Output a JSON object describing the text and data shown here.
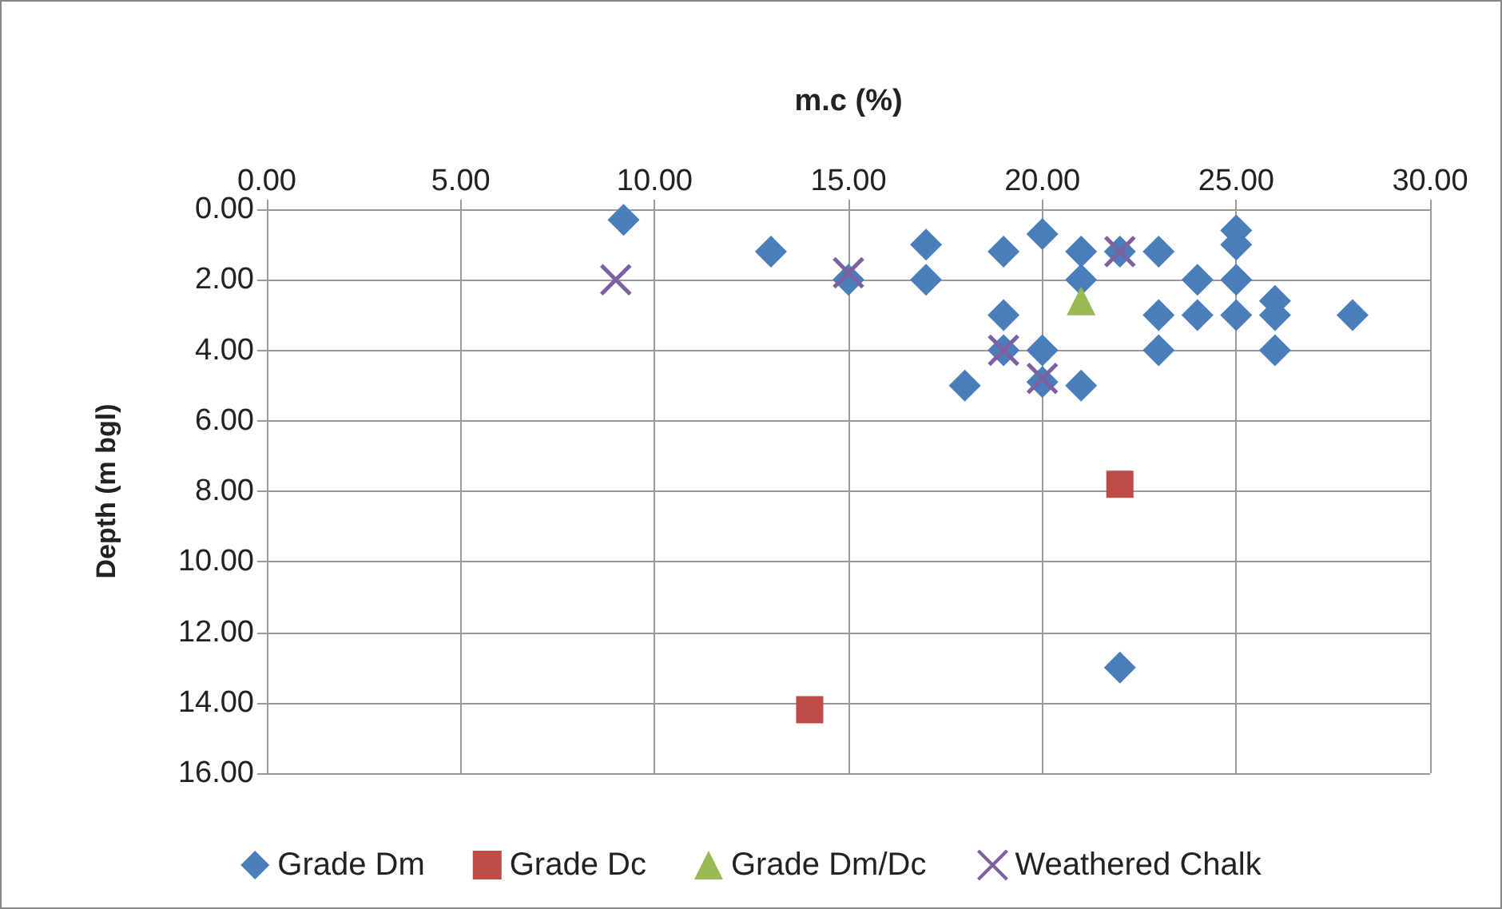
{
  "chart_data": {
    "type": "scatter",
    "xlabel": "m.c (%)",
    "ylabel": "Depth (m bgl)",
    "xlim": [
      0,
      30
    ],
    "xticks": [
      {
        "value": 0,
        "label": "0.00"
      },
      {
        "value": 5,
        "label": "5.00"
      },
      {
        "value": 10,
        "label": "10.00"
      },
      {
        "value": 15,
        "label": "15.00"
      },
      {
        "value": 20,
        "label": "20.00"
      },
      {
        "value": 25,
        "label": "25.00"
      },
      {
        "value": 30,
        "label": "30.00"
      }
    ],
    "ylim": [
      16,
      0
    ],
    "yticks": [
      {
        "value": 0,
        "label": "0.00"
      },
      {
        "value": 2,
        "label": "2.00"
      },
      {
        "value": 4,
        "label": "4.00"
      },
      {
        "value": 6,
        "label": "6.00"
      },
      {
        "value": 8,
        "label": "8.00"
      },
      {
        "value": 10,
        "label": "10.00"
      },
      {
        "value": 12,
        "label": "12.00"
      },
      {
        "value": 14,
        "label": "14.00"
      },
      {
        "value": 16,
        "label": "16.00"
      }
    ],
    "grid": true,
    "legend": "bottom",
    "series": [
      {
        "name": "Grade Dm",
        "color": "#4a7ebb",
        "marker": "diamond",
        "x": [
          9.2,
          13,
          15,
          17,
          17,
          19,
          19,
          19,
          18,
          20,
          20,
          20,
          21,
          21,
          22,
          23,
          25,
          25,
          24,
          25,
          23,
          24,
          25,
          26,
          26,
          28,
          23,
          26,
          21,
          22
        ],
        "values": [
          0.3,
          1.2,
          2.0,
          1.0,
          2.0,
          1.2,
          3.0,
          4.0,
          5.0,
          0.7,
          4.0,
          4.9,
          1.2,
          2.0,
          1.2,
          1.2,
          0.6,
          1.0,
          2.0,
          2.0,
          3.0,
          3.0,
          3.0,
          2.6,
          3.0,
          3.0,
          4.0,
          4.0,
          5.0,
          13.0
        ]
      },
      {
        "name": "Grade Dc",
        "color": "#be4b48",
        "marker": "square",
        "x": [
          22,
          14
        ],
        "values": [
          7.8,
          14.2
        ]
      },
      {
        "name": "Grade Dm/Dc",
        "color": "#98b954",
        "marker": "triangle",
        "x": [
          21
        ],
        "values": [
          2.6
        ]
      },
      {
        "name": "Weathered Chalk",
        "color": "#7d60a0",
        "marker": "cross",
        "x": [
          9,
          15,
          22,
          19,
          20
        ],
        "values": [
          2.0,
          1.8,
          1.2,
          4.0,
          4.8
        ]
      }
    ]
  }
}
